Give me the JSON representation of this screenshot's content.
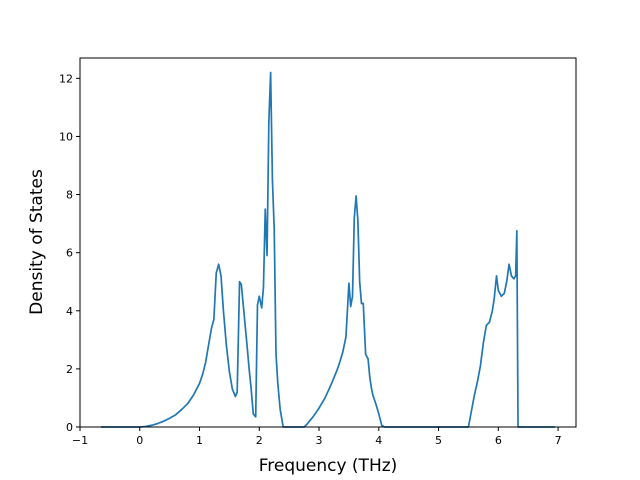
{
  "chart_data": {
    "type": "line",
    "title": "",
    "xlabel": "Frequency (THz)",
    "ylabel": "Density of States",
    "xlim": [
      -1.0,
      7.3
    ],
    "ylim": [
      0,
      12.7
    ],
    "xticks": [
      -1,
      0,
      1,
      2,
      3,
      4,
      5,
      6,
      7
    ],
    "yticks": [
      0,
      2,
      4,
      6,
      8,
      10,
      12
    ],
    "grid": false,
    "line_color": "#1f77b4",
    "series": [
      {
        "x": [
          -0.65,
          -0.3,
          0.0,
          0.1,
          0.2,
          0.3,
          0.4,
          0.5,
          0.6,
          0.7,
          0.8,
          0.9,
          1.0,
          1.05,
          1.1,
          1.15,
          1.2,
          1.24,
          1.28,
          1.32,
          1.36,
          1.4,
          1.45,
          1.5,
          1.55,
          1.6,
          1.63,
          1.67,
          1.7,
          1.75,
          1.8,
          1.83,
          1.86,
          1.9,
          1.94,
          1.97,
          2.0,
          2.04,
          2.07,
          2.1,
          2.13,
          2.16,
          2.19,
          2.22,
          2.25,
          2.28,
          2.31,
          2.35,
          2.4,
          2.45,
          2.75,
          2.8,
          2.9,
          3.0,
          3.1,
          3.2,
          3.3,
          3.35,
          3.4,
          3.45,
          3.5,
          3.53,
          3.56,
          3.59,
          3.62,
          3.65,
          3.68,
          3.71,
          3.74,
          3.78,
          3.82,
          3.85,
          3.88,
          3.9,
          3.95,
          4.0,
          4.05,
          4.1,
          4.15,
          5.5,
          5.55,
          5.6,
          5.65,
          5.7,
          5.75,
          5.8,
          5.85,
          5.9,
          5.93,
          5.97,
          6.0,
          6.05,
          6.1,
          6.14,
          6.18,
          6.22,
          6.26,
          6.29,
          6.31,
          6.33,
          6.6,
          6.95
        ],
        "y": [
          0,
          0,
          0,
          0.02,
          0.06,
          0.12,
          0.2,
          0.3,
          0.42,
          0.6,
          0.8,
          1.1,
          1.5,
          1.8,
          2.2,
          2.8,
          3.4,
          3.7,
          5.3,
          5.6,
          5.2,
          4.0,
          2.8,
          1.9,
          1.3,
          1.05,
          1.2,
          5.0,
          4.9,
          3.8,
          2.7,
          2.0,
          1.4,
          0.45,
          0.35,
          4.2,
          4.5,
          4.1,
          4.8,
          7.5,
          5.9,
          10.5,
          12.2,
          8.5,
          6.8,
          2.5,
          1.5,
          0.6,
          0,
          0,
          0,
          0.1,
          0.35,
          0.65,
          1.0,
          1.45,
          1.95,
          2.25,
          2.6,
          3.1,
          4.95,
          4.15,
          4.5,
          7.2,
          7.95,
          7.1,
          5.0,
          4.25,
          4.25,
          2.5,
          2.35,
          1.7,
          1.3,
          1.1,
          0.8,
          0.45,
          0.05,
          0,
          0,
          0,
          0.55,
          1.1,
          1.55,
          2.1,
          2.9,
          3.5,
          3.6,
          4.0,
          4.4,
          5.2,
          4.7,
          4.5,
          4.6,
          5.0,
          5.6,
          5.2,
          5.1,
          5.2,
          6.75,
          0,
          0,
          0
        ]
      }
    ]
  }
}
